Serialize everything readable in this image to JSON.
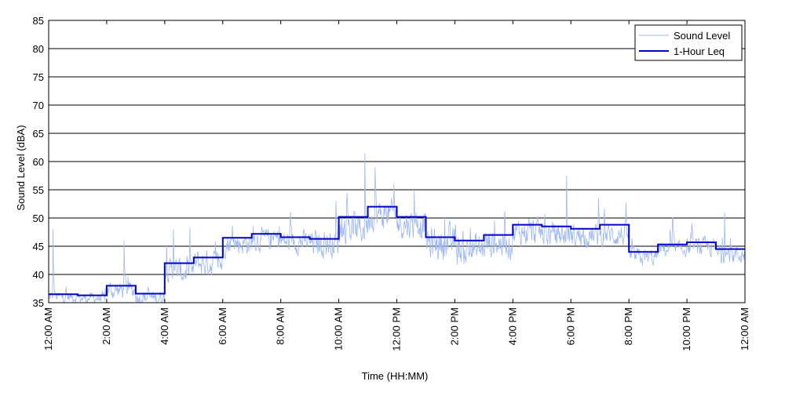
{
  "chart_data": {
    "type": "line",
    "title": "",
    "xlabel": "Time (HH:MM)",
    "ylabel": "Sound Level (dBA)",
    "xlim": [
      0,
      24
    ],
    "ylim": [
      35,
      85
    ],
    "grid": "horizontal",
    "legend_position": "top-right",
    "x_ticks": [
      0,
      2,
      4,
      6,
      8,
      10,
      12,
      14,
      16,
      18,
      20,
      22,
      24
    ],
    "x_tick_labels": [
      "12:00 AM",
      "2:00 AM",
      "4:00 AM",
      "6:00 AM",
      "8:00 AM",
      "10:00 AM",
      "12:00 PM",
      "2:00 PM",
      "4:00 PM",
      "6:00 PM",
      "8:00 PM",
      "10:00 PM",
      "12:00 AM"
    ],
    "y_ticks": [
      35,
      40,
      45,
      50,
      55,
      60,
      65,
      70,
      75,
      80,
      85
    ],
    "y_tick_labels": [
      "35",
      "40",
      "45",
      "50",
      "55",
      "60",
      "65",
      "70",
      "75",
      "80",
      "85"
    ],
    "series": [
      {
        "name": "Sound Level",
        "color": "#9db8f5",
        "style": "thin-line",
        "hourly_mean": [
          36.0,
          35.8,
          37.2,
          35.9,
          40.5,
          42.0,
          45.5,
          46.2,
          45.8,
          45.5,
          48.0,
          50.5,
          49.0,
          45.5,
          44.5,
          45.5,
          47.5,
          47.0,
          46.8,
          47.0,
          43.0,
          44.5,
          44.8,
          43.5
        ],
        "hourly_spread": [
          1.5,
          1.5,
          2.5,
          2.0,
          3.5,
          3.5,
          3.0,
          3.0,
          3.0,
          3.5,
          4.0,
          4.0,
          4.0,
          4.5,
          4.5,
          4.0,
          3.5,
          3.5,
          3.0,
          3.0,
          2.5,
          2.0,
          2.5,
          2.5
        ],
        "peaks": [
          [
            0.15,
            48.0
          ],
          [
            2.6,
            46.0
          ],
          [
            4.3,
            48.0
          ],
          [
            9.9,
            53.0
          ],
          [
            10.9,
            61.5
          ],
          [
            11.25,
            59.0
          ],
          [
            11.9,
            56.0
          ],
          [
            12.6,
            55.0
          ],
          [
            17.85,
            57.5
          ],
          [
            18.95,
            53.5
          ],
          [
            21.5,
            50.0
          ],
          [
            23.3,
            51.0
          ]
        ]
      },
      {
        "name": "1-Hour Leq",
        "color": "#0000cc",
        "style": "step",
        "x": [
          0,
          1,
          2,
          3,
          4,
          5,
          6,
          7,
          8,
          9,
          10,
          11,
          12,
          13,
          14,
          15,
          16,
          17,
          18,
          19,
          20,
          21,
          22,
          23
        ],
        "values": [
          36.5,
          36.3,
          38.0,
          36.6,
          42.0,
          43.0,
          46.5,
          47.2,
          46.6,
          46.3,
          50.2,
          52.0,
          50.2,
          46.6,
          46.0,
          47.0,
          48.8,
          48.5,
          48.1,
          48.8,
          44.0,
          45.3,
          45.7,
          44.5
        ]
      }
    ]
  }
}
